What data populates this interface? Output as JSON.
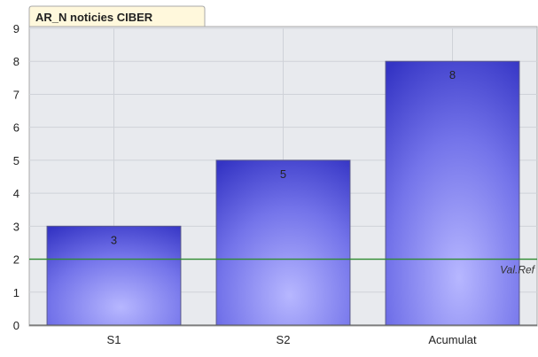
{
  "chart_data": {
    "type": "bar",
    "title": "AR_N noticies CIBER",
    "categories": [
      "S1",
      "S2",
      "Acumulat"
    ],
    "values": [
      3,
      5,
      8
    ],
    "data_labels": [
      "3",
      "5",
      "8"
    ],
    "ylim": [
      0,
      9
    ],
    "yticks": [
      0,
      1,
      2,
      3,
      4,
      5,
      6,
      7,
      8,
      9
    ],
    "grid": true,
    "reference_line": {
      "value": 2,
      "label": "Val.Ref",
      "color": "#2e8b2e"
    },
    "colors": {
      "bar_dark": "#3a3acb",
      "bar_light": "#a9a9ff",
      "plot_background": "#e8eaee",
      "grid": "#cfd2d8",
      "title_tab": "#fff8dc"
    }
  }
}
